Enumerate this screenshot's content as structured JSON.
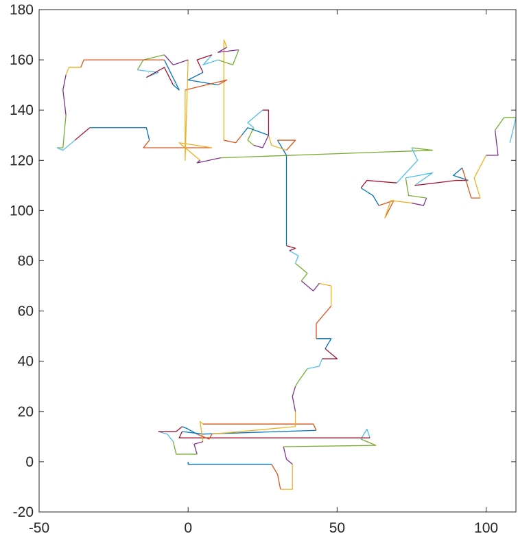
{
  "chart_data": {
    "type": "line",
    "title": "",
    "xlabel": "",
    "ylabel": "",
    "xlim": [
      -50,
      110
    ],
    "ylim": [
      -20,
      180
    ],
    "xticks": [
      -50,
      0,
      50,
      100
    ],
    "yticks": [
      -20,
      0,
      20,
      40,
      60,
      80,
      100,
      120,
      140,
      160,
      180
    ],
    "grid": false,
    "box": true,
    "colors": [
      "#0072BD",
      "#D95319",
      "#EDB120",
      "#7E2F8E",
      "#77AC30",
      "#4DBEEE",
      "#A2142F"
    ],
    "points": [
      [
        0,
        0
      ],
      [
        0,
        -1
      ],
      [
        28,
        -1
      ],
      [
        30,
        -5
      ],
      [
        31,
        -11
      ],
      [
        35,
        -11
      ],
      [
        35,
        -1
      ],
      [
        33,
        1
      ],
      [
        32,
        6
      ],
      [
        63,
        6.5
      ],
      [
        58,
        9
      ],
      [
        60,
        13
      ],
      [
        61,
        9.5
      ],
      [
        -3,
        9.5
      ],
      [
        -2,
        12
      ],
      [
        5,
        11
      ],
      [
        43,
        12.5
      ],
      [
        42,
        15
      ],
      [
        5,
        15
      ],
      [
        4,
        16
      ],
      [
        5,
        8
      ],
      [
        2,
        7
      ],
      [
        3,
        3
      ],
      [
        -4,
        3
      ],
      [
        -5,
        8
      ],
      [
        -7,
        11
      ],
      [
        -10,
        12
      ],
      [
        -4,
        12
      ],
      [
        -2,
        14
      ],
      [
        0,
        13
      ],
      [
        3,
        11
      ],
      [
        7,
        9
      ],
      [
        8,
        11
      ],
      [
        36,
        14
      ],
      [
        36,
        20
      ],
      [
        35,
        26
      ],
      [
        36,
        30
      ],
      [
        37,
        32
      ],
      [
        40,
        37
      ],
      [
        44,
        38
      ],
      [
        45,
        41
      ],
      [
        50,
        41
      ],
      [
        46,
        45
      ],
      [
        48,
        49
      ],
      [
        43,
        49
      ],
      [
        43,
        55
      ],
      [
        48,
        62
      ],
      [
        48,
        70
      ],
      [
        44,
        71
      ],
      [
        42,
        68
      ],
      [
        38,
        72
      ],
      [
        40,
        75
      ],
      [
        36,
        79
      ],
      [
        37,
        82
      ],
      [
        34,
        84
      ],
      [
        36,
        85
      ],
      [
        33,
        86
      ],
      [
        33,
        122
      ],
      [
        30,
        128
      ],
      [
        36,
        128
      ],
      [
        33,
        124
      ],
      [
        28,
        126
      ],
      [
        27,
        130
      ],
      [
        25,
        125
      ],
      [
        22,
        126
      ],
      [
        20,
        128
      ],
      [
        22,
        133
      ],
      [
        20,
        135
      ],
      [
        25,
        140
      ],
      [
        27,
        140
      ],
      [
        27,
        130
      ],
      [
        20,
        133
      ],
      [
        18,
        130
      ],
      [
        16,
        127
      ],
      [
        12,
        128
      ],
      [
        12,
        168
      ],
      [
        13,
        165
      ],
      [
        10,
        163
      ],
      [
        17,
        164
      ],
      [
        15,
        158
      ],
      [
        10,
        160
      ],
      [
        5,
        158
      ],
      [
        8,
        162
      ],
      [
        3,
        160
      ],
      [
        5,
        155
      ],
      [
        0,
        152
      ],
      [
        10,
        150
      ],
      [
        13,
        152
      ],
      [
        -1,
        148
      ],
      [
        -1,
        120
      ],
      [
        0,
        160
      ],
      [
        -5,
        158
      ],
      [
        -8,
        162
      ],
      [
        -15,
        160
      ],
      [
        -17,
        156
      ],
      [
        -10,
        155
      ],
      [
        -14,
        153
      ],
      [
        -8,
        157
      ],
      [
        -5,
        150
      ],
      [
        -3,
        148
      ],
      [
        -8,
        160
      ],
      [
        -35,
        160
      ],
      [
        -36,
        157
      ],
      [
        -40,
        157
      ],
      [
        -41,
        154
      ],
      [
        -42,
        148
      ],
      [
        -41,
        138
      ],
      [
        -42,
        125
      ],
      [
        -44,
        125
      ],
      [
        -42,
        124
      ],
      [
        -38,
        128
      ],
      [
        -35,
        131
      ],
      [
        -33,
        133
      ],
      [
        -14,
        133
      ],
      [
        -13,
        128
      ],
      [
        -15,
        125
      ],
      [
        8,
        125
      ],
      [
        -3,
        127
      ],
      [
        4,
        120
      ],
      [
        3,
        119
      ],
      [
        11,
        121
      ],
      [
        82,
        124
      ],
      [
        75,
        125
      ],
      [
        77,
        120
      ],
      [
        70,
        111
      ],
      [
        60,
        112
      ],
      [
        58,
        109
      ],
      [
        62,
        106
      ],
      [
        64,
        102
      ],
      [
        69,
        104
      ],
      [
        66,
        97
      ],
      [
        68,
        104
      ],
      [
        75,
        103
      ],
      [
        79,
        102
      ],
      [
        80,
        105
      ],
      [
        74,
        106
      ],
      [
        73,
        113
      ],
      [
        82,
        115
      ],
      [
        76,
        110
      ],
      [
        90,
        112
      ],
      [
        94,
        112
      ],
      [
        89,
        114
      ],
      [
        92,
        117
      ],
      [
        95,
        105
      ],
      [
        98,
        105
      ],
      [
        96,
        113
      ],
      [
        100,
        122
      ],
      [
        104,
        122
      ],
      [
        103,
        132
      ],
      [
        106,
        137
      ],
      [
        110,
        137
      ],
      [
        108,
        127
      ]
    ]
  }
}
